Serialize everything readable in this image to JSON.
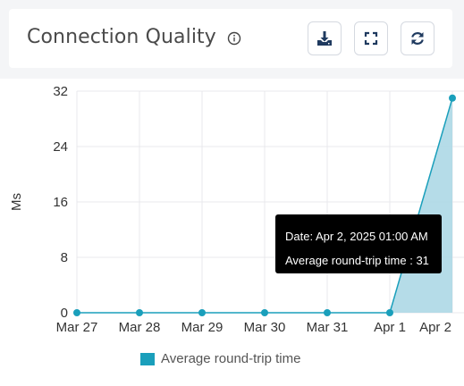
{
  "header": {
    "title": "Connection Quality",
    "info_icon": "info-icon",
    "buttons": [
      {
        "name": "download",
        "icon": "download-icon"
      },
      {
        "name": "fullscreen",
        "icon": "expand-icon"
      },
      {
        "name": "refresh",
        "icon": "refresh-icon"
      }
    ]
  },
  "tooltip": {
    "date_line": "Date: Apr 2, 2025 01:00 AM",
    "value_line": "Average round-trip time : 31"
  },
  "colors": {
    "series": "#1a9fbb",
    "area_fill": "#add8e6",
    "grid": "#e8e8ec"
  },
  "chart_data": {
    "type": "area",
    "ylabel": "Ms",
    "xlabel": "",
    "categories": [
      "Mar 27",
      "Mar 28",
      "Mar 29",
      "Mar 30",
      "Mar 31",
      "Apr 1",
      "Apr 2"
    ],
    "yticks": [
      "0",
      "8",
      "16",
      "24",
      "32"
    ],
    "ylim": [
      0,
      32
    ],
    "grid": true,
    "legend_position": "bottom",
    "series": [
      {
        "name": "Average round-trip time",
        "values": [
          0,
          0,
          0,
          0,
          0,
          0,
          31
        ]
      }
    ]
  }
}
